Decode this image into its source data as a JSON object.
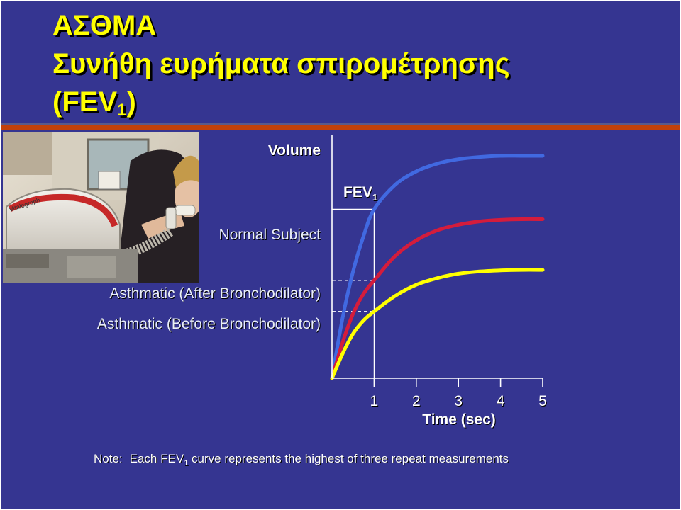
{
  "slide": {
    "title_line1": "ΑΣΘΜΑ",
    "title_line2": "Συνήθη ευρήματα σπιρομέτρησης",
    "title_line3_prefix": "(FEV",
    "title_line3_sub": "1",
    "title_line3_suffix": ")",
    "title_color": "#ffff00",
    "background_color": "#353591",
    "separator_color": "#c2410c"
  },
  "labels": {
    "volume": "Volume",
    "normal": "Normal Subject",
    "after": "Asthmatic (After Bronchodilator)",
    "before": "Asthmatic (Before Bronchodilator)",
    "fev_main": "FEV",
    "fev_sub": "1"
  },
  "note": {
    "prefix": "Note:",
    "text_before": "Each FEV",
    "sub": "1",
    "text_after": "curve represents the highest of three repeat measurements"
  },
  "chart_data": {
    "type": "line",
    "xlabel": "Time (sec)",
    "ylabel": "Volume",
    "xlim": [
      0,
      5
    ],
    "x_ticks": [
      "1",
      "2",
      "3",
      "4",
      "5"
    ],
    "y_ticks": [],
    "fev1_marker_time": 1,
    "series": [
      {
        "name": "Normal Subject",
        "color": "#4169e1",
        "x": [
          0,
          0.25,
          0.5,
          0.75,
          1,
          1.5,
          2,
          2.5,
          3,
          3.5,
          4,
          4.5,
          5
        ],
        "y": [
          0,
          0.27,
          0.48,
          0.64,
          0.76,
          0.87,
          0.93,
          0.965,
          0.985,
          0.995,
          1.0,
          1.0,
          1.0
        ]
      },
      {
        "name": "Asthmatic (After Bronchodilator)",
        "color": "#d41c3c",
        "x": [
          0,
          0.25,
          0.5,
          0.75,
          1,
          1.5,
          2,
          2.5,
          3,
          3.5,
          4,
          4.5,
          5
        ],
        "y": [
          0,
          0.16,
          0.29,
          0.38,
          0.44,
          0.55,
          0.62,
          0.665,
          0.69,
          0.705,
          0.712,
          0.715,
          0.715
        ]
      },
      {
        "name": "Asthmatic (Before Bronchodilator)",
        "color": "#ffff00",
        "x": [
          0,
          0.25,
          0.5,
          0.75,
          1,
          1.5,
          2,
          2.5,
          3,
          3.5,
          4,
          4.5,
          5
        ],
        "y": [
          0,
          0.11,
          0.2,
          0.26,
          0.3,
          0.37,
          0.42,
          0.45,
          0.47,
          0.48,
          0.485,
          0.487,
          0.487
        ]
      }
    ]
  }
}
